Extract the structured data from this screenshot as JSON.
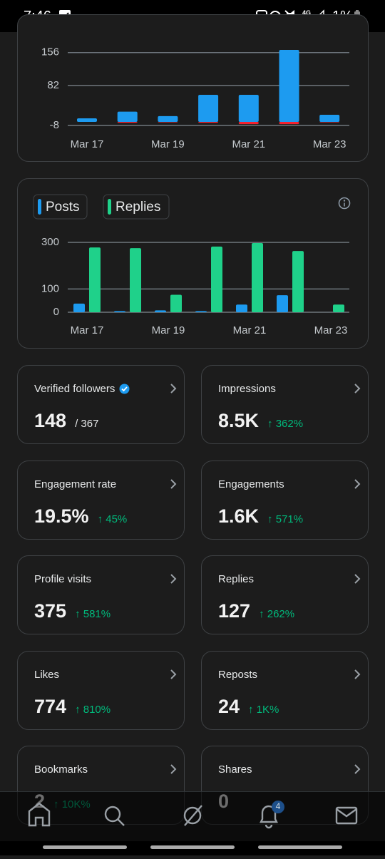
{
  "status_bar": {
    "time": "7:46",
    "network": "4G",
    "battery": "1%"
  },
  "chart_top": {
    "type": "bar",
    "categories": [
      "Mar 17",
      null,
      "Mar 19",
      null,
      "Mar 21",
      null,
      "Mar 23"
    ],
    "series": [
      {
        "color": "#1d9bf0",
        "values": [
          8,
          23,
          13,
          61,
          61,
          162,
          16
        ]
      },
      {
        "color": "#f4212e",
        "values": [
          0,
          -2,
          -1,
          -2,
          -5,
          -5,
          -1
        ]
      }
    ],
    "ylim": [
      -8,
      162
    ],
    "yticks": [
      156,
      82,
      -8
    ],
    "grid": true
  },
  "chart_activity": {
    "type": "bar",
    "categories": [
      "Mar 17",
      null,
      "Mar 19",
      null,
      "Mar 21",
      null,
      "Mar 23"
    ],
    "series": [
      {
        "name": "Posts",
        "color": "#1d9bf0",
        "values": [
          37,
          5,
          8,
          5,
          33,
          73,
          0
        ]
      },
      {
        "name": "Replies",
        "color": "#1fd18a",
        "values": [
          278,
          275,
          75,
          282,
          297,
          263,
          33
        ]
      }
    ],
    "ylim": [
      0,
      300
    ],
    "yticks": [
      300,
      100,
      0
    ],
    "grid": true
  },
  "stats": [
    {
      "label": "Verified followers",
      "verified": true,
      "value": "148",
      "sub": "/ 367"
    },
    {
      "label": "Impressions",
      "value": "8.5K",
      "change": "↑ 362%"
    },
    {
      "label": "Engagement rate",
      "value": "19.5%",
      "change": "↑ 45%"
    },
    {
      "label": "Engagements",
      "value": "1.6K",
      "change": "↑ 571%"
    },
    {
      "label": "Profile visits",
      "value": "375",
      "change": "↑ 581%"
    },
    {
      "label": "Replies",
      "value": "127",
      "change": "↑ 262%"
    },
    {
      "label": "Likes",
      "value": "774",
      "change": "↑ 810%"
    },
    {
      "label": "Reposts",
      "value": "24",
      "change": "↑ 1K%"
    },
    {
      "label": "Bookmarks",
      "value": "2",
      "change": "↑ 10K%"
    },
    {
      "label": "Shares",
      "value": "0"
    }
  ],
  "nav": {
    "notifications_badge": "4"
  }
}
